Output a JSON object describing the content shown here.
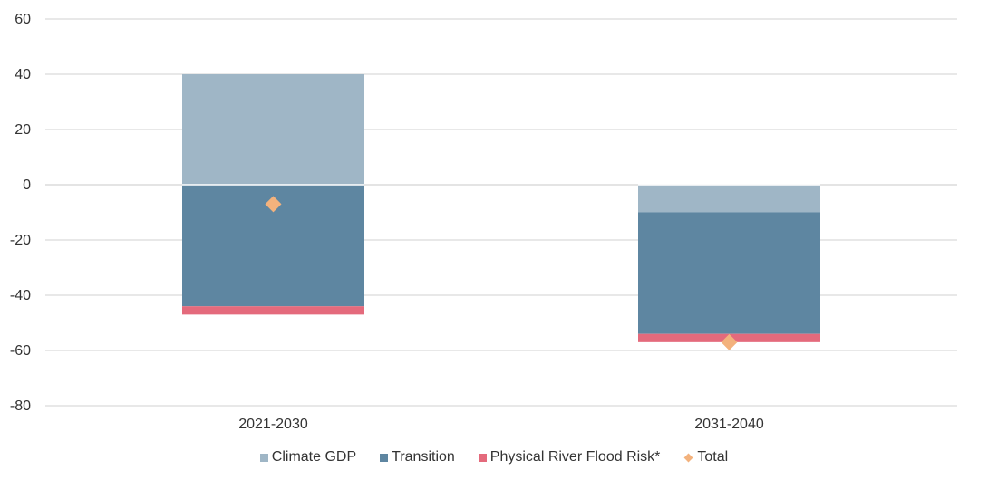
{
  "chart_data": {
    "type": "bar",
    "stacked": true,
    "categories": [
      "2021-2030",
      "2031-2040"
    ],
    "series": [
      {
        "name": "Climate GDP",
        "kind": "bar",
        "color": "#9fb6c6",
        "values": [
          40,
          -10
        ]
      },
      {
        "name": "Transition",
        "kind": "bar",
        "color": "#5e86a1",
        "values": [
          -44,
          -44
        ]
      },
      {
        "name": "Physical River Flood Risk*",
        "kind": "bar",
        "color": "#e46a7c",
        "values": [
          -3,
          -3
        ]
      },
      {
        "name": "Total",
        "kind": "marker",
        "marker": "diamond",
        "color": "#f3b27d",
        "values": [
          -7,
          -57
        ]
      }
    ],
    "ylim": [
      -80,
      60
    ],
    "yticks": [
      60,
      40,
      20,
      0,
      -20,
      -40,
      -60,
      -80
    ],
    "ytick_labels": [
      "60",
      "40",
      "20",
      "0",
      "-20",
      "-40",
      "-60",
      "-80"
    ],
    "title": "",
    "xlabel": "",
    "ylabel": "",
    "grid": true,
    "legend_position": "bottom"
  }
}
